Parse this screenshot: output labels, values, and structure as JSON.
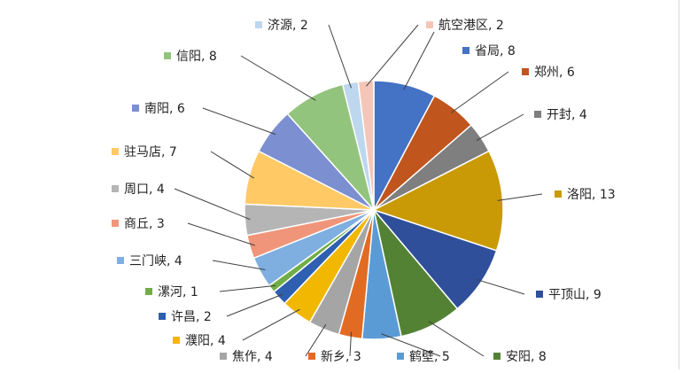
{
  "chart_data": {
    "type": "pie",
    "labels": [
      "省局",
      "郑州",
      "开封",
      "洛阳",
      "平顶山",
      "安阳",
      "鹤壁",
      "新乡",
      "焦作",
      "濮阳",
      "许昌",
      "漯河",
      "三门峡",
      "商丘",
      "周口",
      "驻马店",
      "南阳",
      "信阳",
      "济源",
      "航空港区"
    ],
    "values": [
      8,
      6,
      4,
      13,
      9,
      8,
      5,
      3,
      4,
      4,
      2,
      1,
      4,
      3,
      4,
      7,
      6,
      8,
      2,
      2
    ],
    "colors": [
      "#4472C4",
      "#C0551D",
      "#7F7F7F",
      "#C99A06",
      "#2F4F9A",
      "#548235",
      "#5B9BD5",
      "#E26B23",
      "#A5A5A5",
      "#F2B700",
      "#2E5FB0",
      "#70AD47",
      "#7FAEE0",
      "#F0957A",
      "#B5B5B5",
      "#FFC965",
      "#7B8FD1",
      "#93C47D",
      "#BDD7EE",
      "#F4C6B8"
    ],
    "data_labels": [
      "省局, 8",
      "郑州, 6",
      "开封, 4",
      "洛阳, 13",
      "平顶山, 9",
      "安阳, 8",
      "鹤壁, 5",
      "新乡, 3",
      "焦作, 4",
      "濮阳, 4",
      "许昌, 2",
      "漯河, 1",
      "三门峡, 4",
      "商丘, 3",
      "周口, 4",
      "驻马店, 7",
      "南阳, 6",
      "信阳, 8",
      "济源, 2",
      "航空港区, 2"
    ],
    "start_angle": "12 o'clock",
    "direction": "clockwise",
    "legend": "none",
    "title": ""
  }
}
